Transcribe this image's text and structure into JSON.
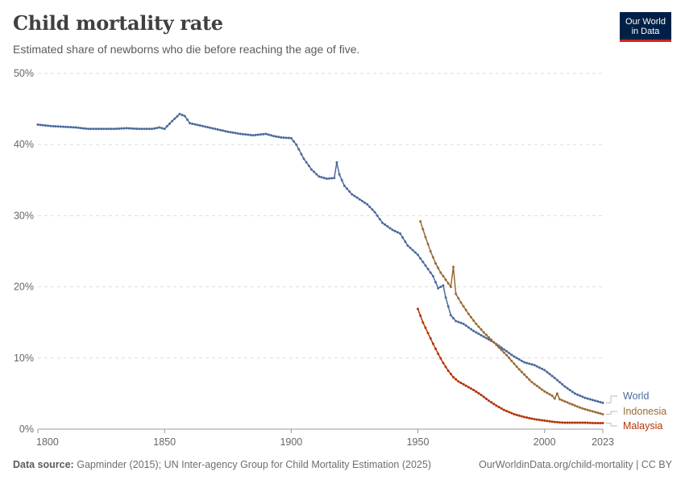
{
  "header": {
    "title": "Child mortality rate",
    "subtitle": "Estimated share of newborns who die before reaching the age of five."
  },
  "logo": {
    "line1": "Our World",
    "line2": "in Data"
  },
  "footer": {
    "source_label": "Data source:",
    "source_text": "Gapminder (2015); UN Inter-agency Group for Child Mortality Estimation (2025)",
    "link_text": "OurWorldinData.org/child-mortality | CC BY"
  },
  "chart_data": {
    "type": "line",
    "title": "Child mortality rate",
    "subtitle": "Estimated share of newborns who die before reaching the age of five.",
    "xlim": [
      1800,
      2023
    ],
    "ylim": [
      0,
      50
    ],
    "x_ticks": [
      1800,
      1850,
      1900,
      1950,
      2000,
      2023
    ],
    "y_ticks": [
      {
        "value": 0,
        "label": "0%"
      },
      {
        "value": 10,
        "label": "10%"
      },
      {
        "value": 20,
        "label": "20%"
      },
      {
        "value": 30,
        "label": "30%"
      },
      {
        "value": 40,
        "label": "40%"
      },
      {
        "value": 50,
        "label": "50%"
      }
    ],
    "grid": "horizontal dashed",
    "legend": "right end labels",
    "series": [
      {
        "name": "World",
        "color": "#4c6a9c",
        "points": [
          [
            1800,
            42.8
          ],
          [
            1805,
            42.6
          ],
          [
            1810,
            42.5
          ],
          [
            1815,
            42.4
          ],
          [
            1820,
            42.2
          ],
          [
            1825,
            42.2
          ],
          [
            1830,
            42.2
          ],
          [
            1835,
            42.3
          ],
          [
            1840,
            42.2
          ],
          [
            1845,
            42.2
          ],
          [
            1848,
            42.4
          ],
          [
            1850,
            42.2
          ],
          [
            1853,
            43.3
          ],
          [
            1856,
            44.3
          ],
          [
            1858,
            44.0
          ],
          [
            1860,
            43.0
          ],
          [
            1865,
            42.6
          ],
          [
            1870,
            42.2
          ],
          [
            1875,
            41.8
          ],
          [
            1880,
            41.5
          ],
          [
            1885,
            41.3
          ],
          [
            1890,
            41.5
          ],
          [
            1893,
            41.2
          ],
          [
            1896,
            41.0
          ],
          [
            1900,
            40.9
          ],
          [
            1902,
            40.0
          ],
          [
            1905,
            38.0
          ],
          [
            1908,
            36.5
          ],
          [
            1911,
            35.5
          ],
          [
            1914,
            35.2
          ],
          [
            1917,
            35.3
          ],
          [
            1918,
            37.5
          ],
          [
            1919,
            35.8
          ],
          [
            1921,
            34.2
          ],
          [
            1924,
            33.0
          ],
          [
            1927,
            32.3
          ],
          [
            1930,
            31.6
          ],
          [
            1933,
            30.5
          ],
          [
            1936,
            29.0
          ],
          [
            1940,
            28.0
          ],
          [
            1943,
            27.5
          ],
          [
            1946,
            25.8
          ],
          [
            1950,
            24.5
          ],
          [
            1953,
            23.0
          ],
          [
            1956,
            21.5
          ],
          [
            1958,
            19.8
          ],
          [
            1960,
            20.2
          ],
          [
            1961,
            18.5
          ],
          [
            1963,
            16.0
          ],
          [
            1965,
            15.2
          ],
          [
            1968,
            14.8
          ],
          [
            1972,
            13.8
          ],
          [
            1976,
            13.0
          ],
          [
            1980,
            12.2
          ],
          [
            1984,
            11.2
          ],
          [
            1988,
            10.2
          ],
          [
            1992,
            9.4
          ],
          [
            1996,
            9.0
          ],
          [
            2000,
            8.3
          ],
          [
            2004,
            7.2
          ],
          [
            2008,
            6.0
          ],
          [
            2012,
            5.0
          ],
          [
            2016,
            4.4
          ],
          [
            2020,
            4.0
          ],
          [
            2023,
            3.7
          ]
        ]
      },
      {
        "name": "Indonesia",
        "color": "#9a6a34",
        "points": [
          [
            1951,
            29.2
          ],
          [
            1953,
            27.0
          ],
          [
            1955,
            25.0
          ],
          [
            1957,
            23.3
          ],
          [
            1959,
            22.0
          ],
          [
            1961,
            21.0
          ],
          [
            1963,
            20.0
          ],
          [
            1964,
            22.8
          ],
          [
            1965,
            19.0
          ],
          [
            1967,
            17.8
          ],
          [
            1970,
            16.2
          ],
          [
            1973,
            14.8
          ],
          [
            1976,
            13.6
          ],
          [
            1980,
            12.2
          ],
          [
            1985,
            10.4
          ],
          [
            1990,
            8.4
          ],
          [
            1995,
            6.6
          ],
          [
            2000,
            5.3
          ],
          [
            2003,
            4.7
          ],
          [
            2004,
            4.3
          ],
          [
            2005,
            5.0
          ],
          [
            2006,
            4.2
          ],
          [
            2010,
            3.6
          ],
          [
            2015,
            2.9
          ],
          [
            2020,
            2.4
          ],
          [
            2023,
            2.1
          ]
        ]
      },
      {
        "name": "Malaysia",
        "color": "#b13507",
        "points": [
          [
            1950,
            16.9
          ],
          [
            1952,
            15.0
          ],
          [
            1954,
            13.5
          ],
          [
            1956,
            12.0
          ],
          [
            1958,
            10.6
          ],
          [
            1960,
            9.3
          ],
          [
            1962,
            8.2
          ],
          [
            1964,
            7.3
          ],
          [
            1966,
            6.7
          ],
          [
            1968,
            6.3
          ],
          [
            1970,
            5.9
          ],
          [
            1972,
            5.5
          ],
          [
            1975,
            4.8
          ],
          [
            1978,
            4.0
          ],
          [
            1981,
            3.3
          ],
          [
            1984,
            2.7
          ],
          [
            1988,
            2.1
          ],
          [
            1992,
            1.7
          ],
          [
            1996,
            1.4
          ],
          [
            2000,
            1.2
          ],
          [
            2004,
            1.0
          ],
          [
            2008,
            0.9
          ],
          [
            2012,
            0.9
          ],
          [
            2016,
            0.9
          ],
          [
            2020,
            0.85
          ],
          [
            2023,
            0.85
          ]
        ]
      }
    ]
  }
}
